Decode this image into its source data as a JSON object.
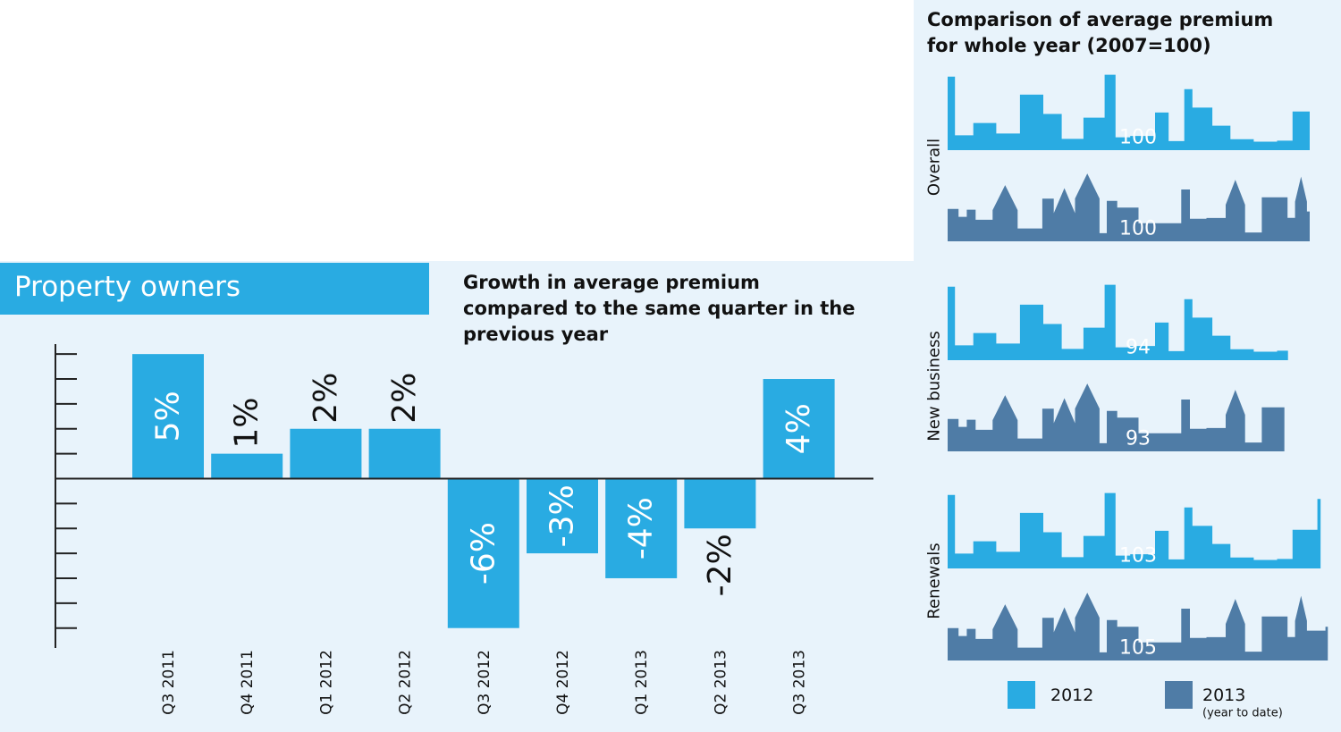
{
  "section_title": "Property owners",
  "chart_data": [
    {
      "type": "bar",
      "title": "Growth in average premium compared to the same quarter in the previous year",
      "categories": [
        "Q3 2011",
        "Q4 2011",
        "Q1 2012",
        "Q2 2012",
        "Q3 2012",
        "Q4 2012",
        "Q1 2013",
        "Q2 2013",
        "Q3 2013"
      ],
      "values": [
        5,
        1,
        2,
        2,
        -6,
        -3,
        -4,
        -2,
        4
      ],
      "value_labels": [
        "5%",
        "1%",
        "2%",
        "2%",
        "-6%",
        "-3%",
        "-4%",
        "-2%",
        "4%"
      ],
      "color": "#29abe2",
      "ylim": [
        -6.8,
        5.4
      ],
      "yticks": [
        -6,
        -5,
        -4,
        -3,
        -2,
        -1,
        0,
        1,
        2,
        3,
        4,
        5
      ]
    },
    {
      "type": "skyline",
      "title": "Comparison of average premium for whole year (2007=100)",
      "categories": [
        "Overall",
        "New business",
        "Renewals"
      ],
      "series": [
        {
          "name": "2012",
          "color": "#29abe2",
          "values": [
            100,
            94,
            103
          ]
        },
        {
          "name": "2013",
          "color": "#4f7ca6",
          "values": [
            100,
            93,
            105
          ],
          "note": "(year to date)"
        }
      ]
    }
  ]
}
